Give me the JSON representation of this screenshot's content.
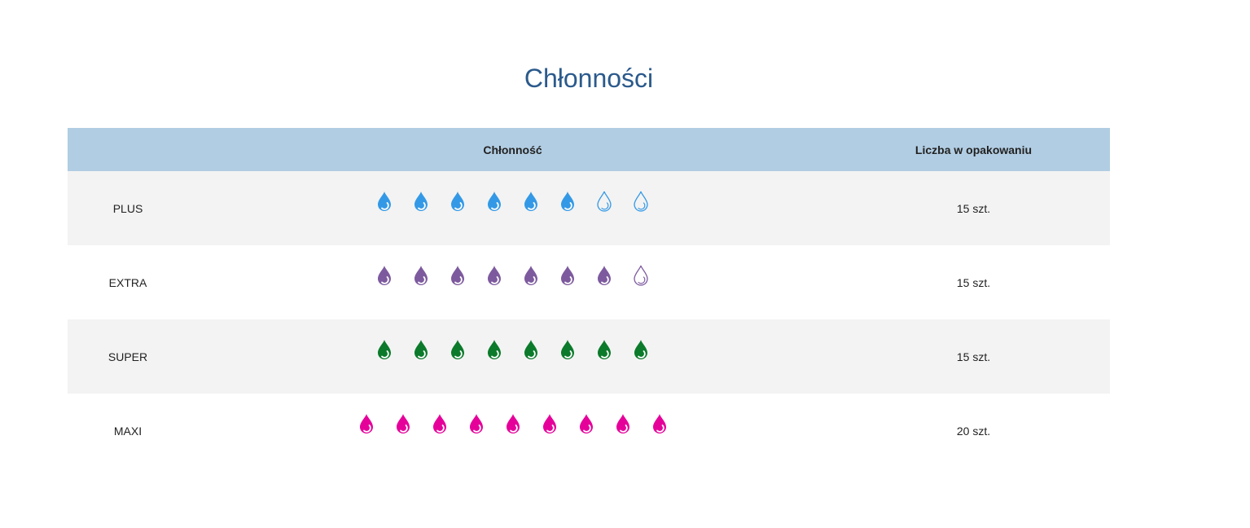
{
  "title": "Chłonności",
  "table": {
    "headers": [
      "",
      "Chłonność",
      "Liczba w opakowaniu"
    ],
    "rows": [
      {
        "name": "PLUS",
        "filled": 6,
        "total": 8,
        "color": "#3399e6",
        "count": "15 szt."
      },
      {
        "name": "EXTRA",
        "filled": 7,
        "total": 8,
        "color": "#7d5a9e",
        "count": "15 szt."
      },
      {
        "name": "SUPER",
        "filled": 8,
        "total": 8,
        "color": "#0b7a2b",
        "count": "15 szt."
      },
      {
        "name": "MAXI",
        "filled": 9,
        "total": 9,
        "color": "#e6009a",
        "count": "20 szt."
      }
    ]
  },
  "icons": {
    "drop": "water-drop-icon"
  }
}
